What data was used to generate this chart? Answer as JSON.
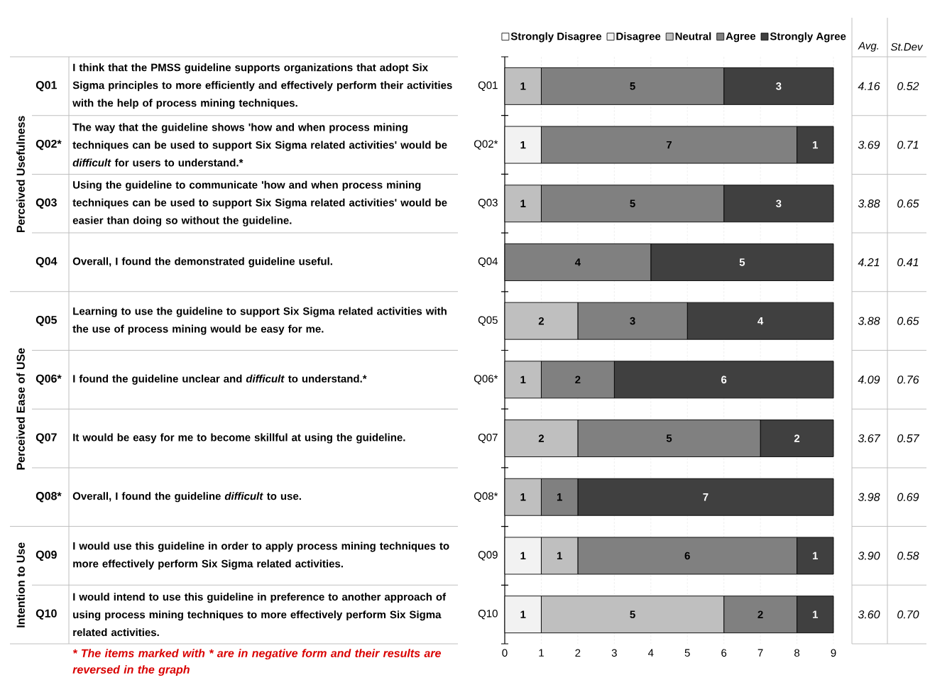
{
  "chart_data": {
    "type": "bar",
    "orientation": "horizontal",
    "stacked": true,
    "categories": [
      "Q01",
      "Q02*",
      "Q03",
      "Q04",
      "Q05",
      "Q06*",
      "Q07",
      "Q08*",
      "Q09",
      "Q10"
    ],
    "series": [
      {
        "name": "Strongly Disagree",
        "color": "#ffffff",
        "values": [
          null,
          null,
          null,
          null,
          null,
          null,
          null,
          null,
          null,
          null
        ]
      },
      {
        "name": "Disagree",
        "color": "#f2f2f2",
        "values": [
          null,
          1,
          null,
          null,
          null,
          null,
          null,
          null,
          1,
          1
        ]
      },
      {
        "name": "Neutral",
        "color": "#bfbfbf",
        "values": [
          1,
          null,
          1,
          null,
          2,
          1,
          2,
          1,
          1,
          5
        ]
      },
      {
        "name": "Agree",
        "color": "#808080",
        "values": [
          5,
          7,
          5,
          4,
          3,
          2,
          5,
          1,
          6,
          2
        ]
      },
      {
        "name": "Strongly Agree",
        "color": "#404040",
        "values": [
          3,
          1,
          3,
          5,
          4,
          6,
          2,
          7,
          1,
          1
        ]
      }
    ],
    "xlim": [
      0,
      9
    ],
    "xticks": [
      0,
      1,
      2,
      3,
      4,
      5,
      6,
      7,
      8,
      9
    ],
    "grid": "x",
    "legend": "top",
    "data_labels": true,
    "annotations": [
      "Perceived Usefulness",
      "Perceived Ease of USe",
      "Intention to Use",
      "Q01",
      "Q02*",
      "Q03",
      "Q04",
      "Q05",
      "Q06*",
      "Q07",
      "Q08*",
      "Q09",
      "Q10",
      "I think that the PMSS guideline supports organizations that adopt Six Sigma principles to more efficiently and effectively perform their activities with the help of process mining techniques.",
      "The way that the guideline shows 'how and when process mining techniques can be used to support Six Sigma related activities' would be *difficult* for users to understand.*",
      "Using the guideline to communicate 'how and when process mining techniques can be used to support Six Sigma related activities' would be easier than doing so without the guideline.",
      "Overall, I found the demonstrated guideline useful.",
      "Learning to use the guideline to support Six Sigma related activities with the use of process mining would be easy for me.",
      "I found the guideline unclear and *difficult* to understand.*",
      "It would be easy for me to become skillful at using the guideline.",
      "Overall, I found the guideline *difficult* to use.",
      "I would use this guideline in order to apply process mining techniques to more effectively perform Six Sigma related activities.",
      "I would intend to use this guideline in preference to another approach of using process mining techniques to more effectively perform Six Sigma related activities.",
      "Avg.",
      "St.Dev",
      "4.16",
      "3.69",
      "3.88",
      "4.21",
      "3.88",
      "4.09",
      "3.67",
      "3.98",
      "3.90",
      "3.60",
      "0.52",
      "0.71",
      "0.65",
      "0.41",
      "0.65",
      "0.76",
      "0.57",
      "0.69",
      "0.58",
      "0.70",
      "* The items marked with * are in negative form and their results are reversed in the graph"
    ]
  }
}
